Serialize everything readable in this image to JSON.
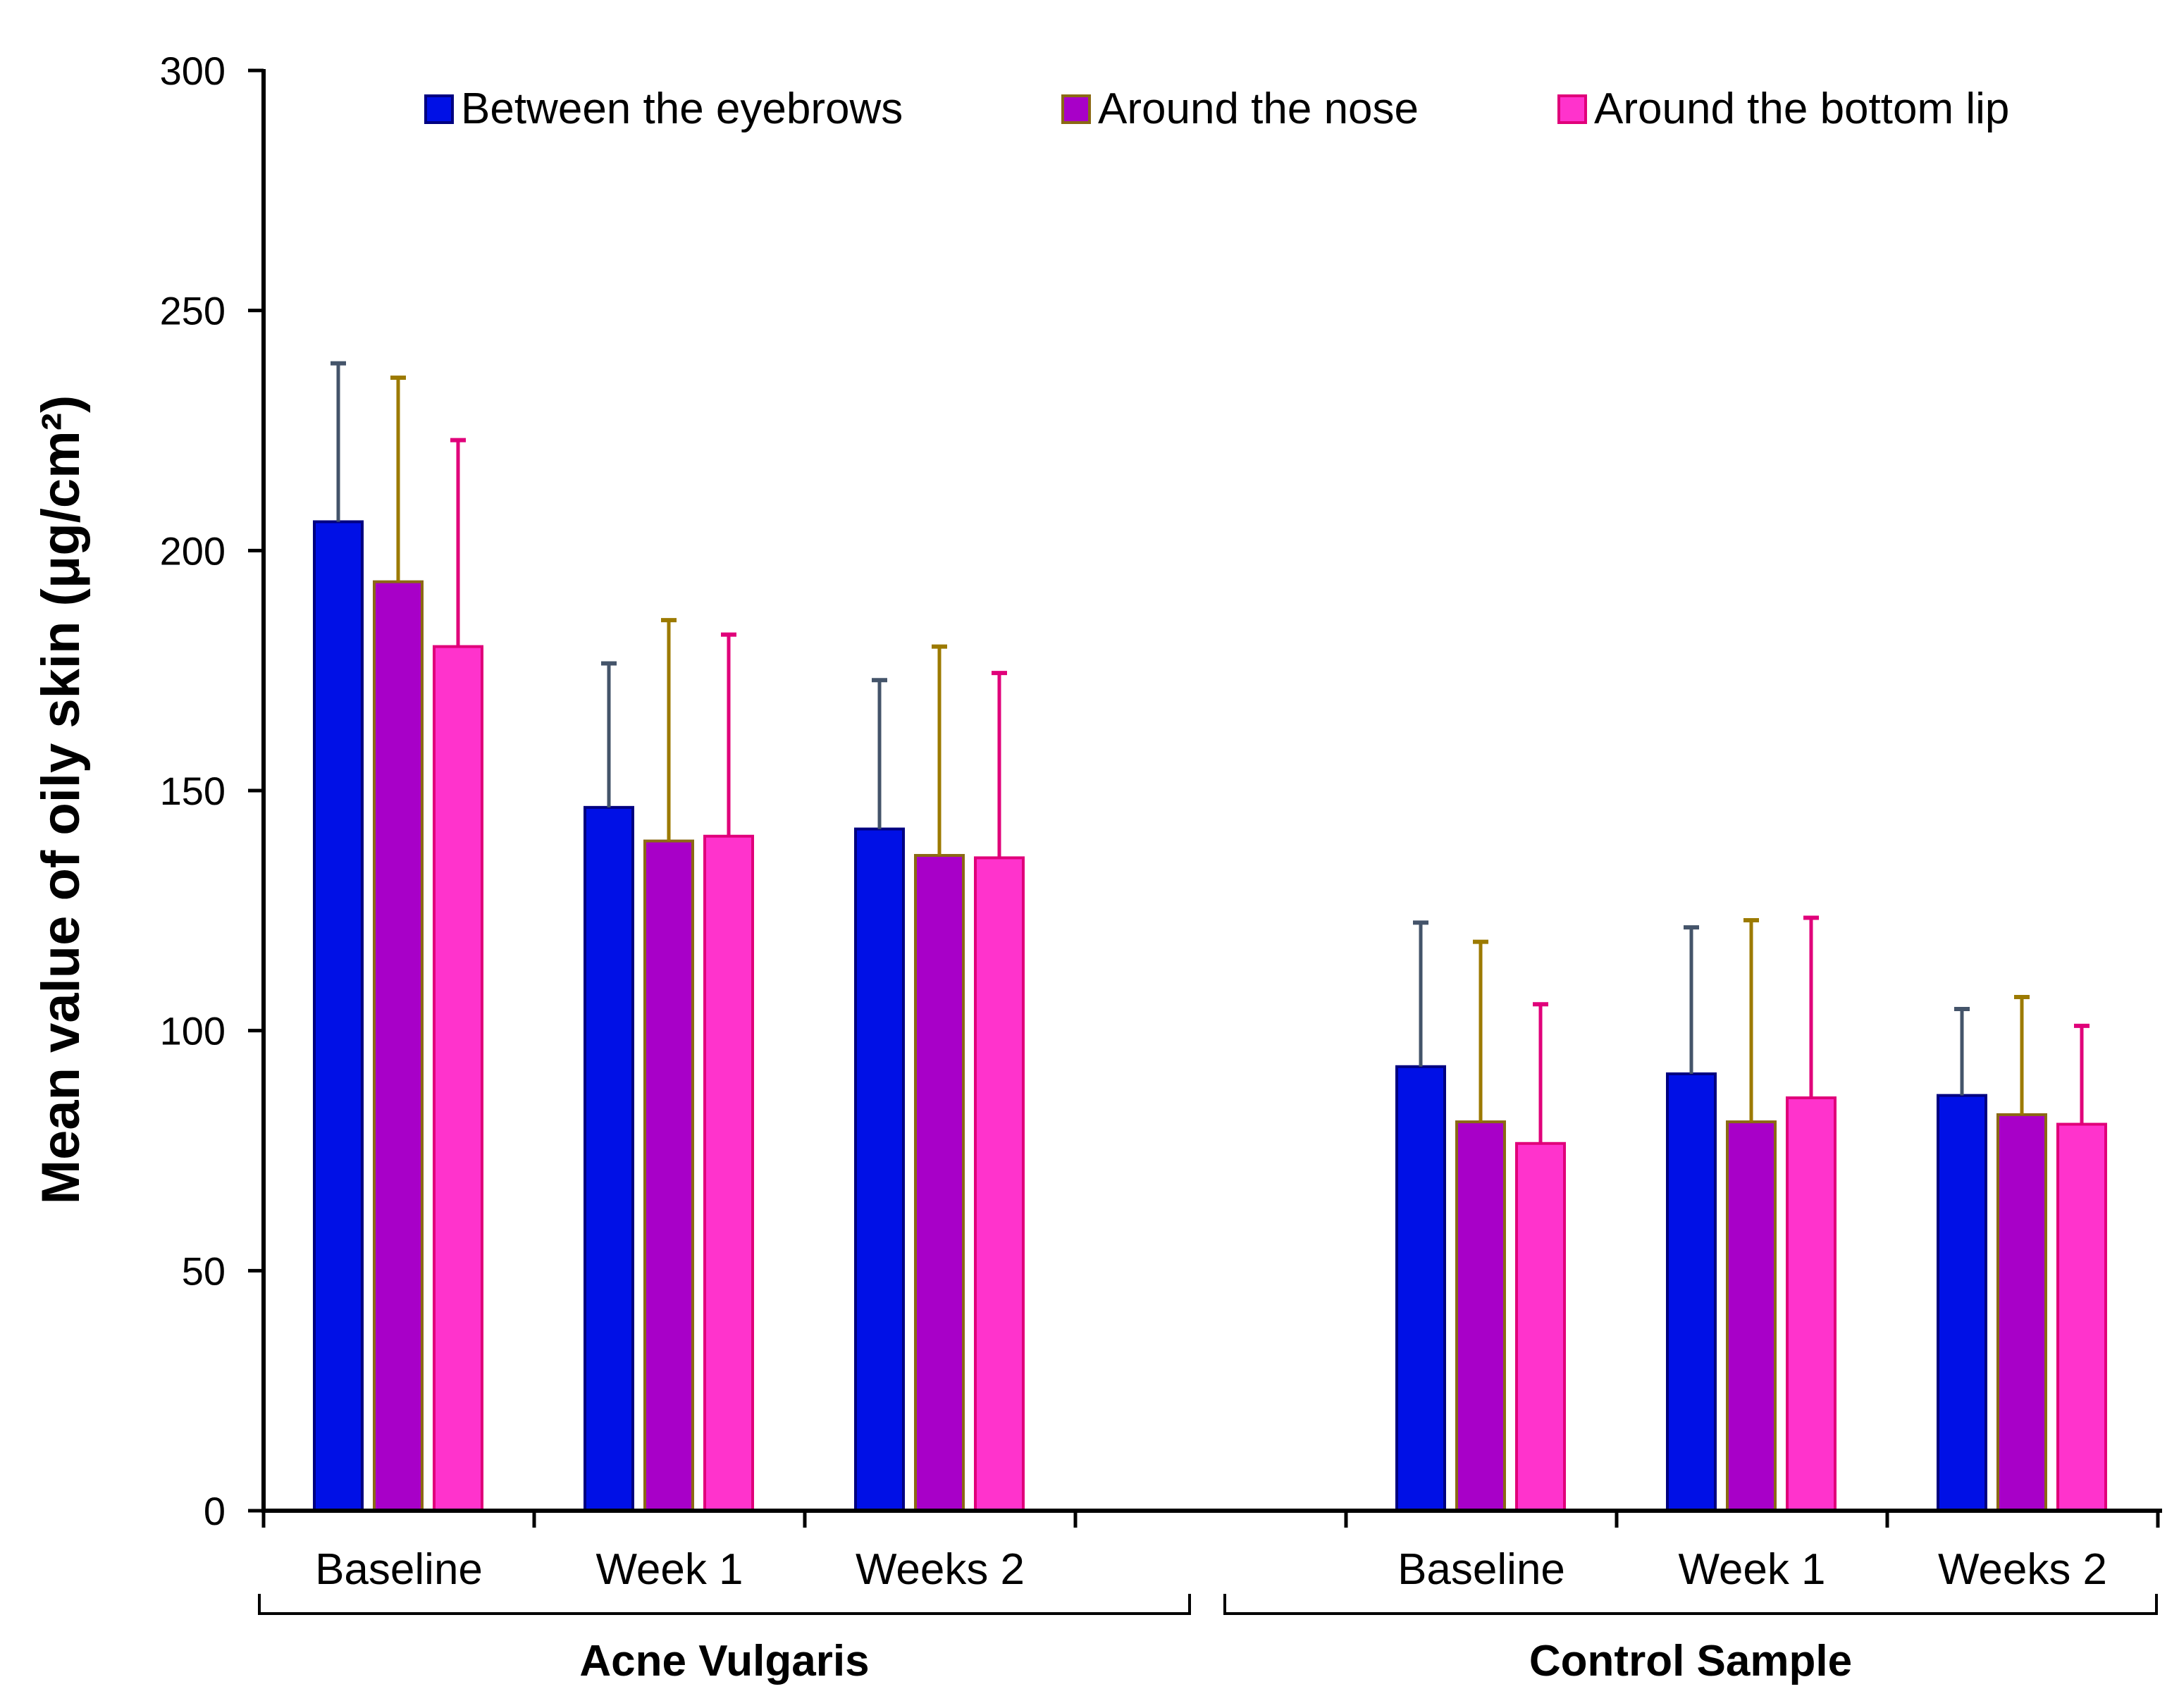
{
  "chart_data": {
    "type": "bar",
    "ylabel": "Mean value of oily skin (μg/cm²)",
    "ylim": [
      0,
      300
    ],
    "yticks": [
      0,
      50,
      100,
      150,
      200,
      250,
      300
    ],
    "groups": [
      {
        "label": "Acne Vulgaris",
        "categories": [
          "Baseline",
          "Week 1",
          "Weeks 2"
        ]
      },
      {
        "label": "Control Sample",
        "categories": [
          "Baseline",
          "Week 1",
          "Weeks 2"
        ]
      }
    ],
    "categories": [
      "Baseline",
      "Week 1",
      "Weeks 2",
      "",
      "Baseline",
      "Week 1",
      "Weeks 2"
    ],
    "legend_position": "top",
    "series": [
      {
        "name": "Between the eyebrows",
        "color": "#0010E6",
        "border": "#000080",
        "err_color": "#44546A",
        "values": [
          206,
          146.5,
          142,
          null,
          92.5,
          91,
          86.5
        ],
        "errors": [
          33,
          30,
          31,
          null,
          30,
          30.5,
          18
        ]
      },
      {
        "name": "Around the nose",
        "color": "#A800C8",
        "border": "#8B6914",
        "err_color": "#9C7A00",
        "values": [
          193.5,
          139.5,
          136.5,
          null,
          81,
          81,
          82.5
        ],
        "errors": [
          42.5,
          46,
          43.5,
          null,
          37.5,
          42,
          24.5
        ]
      },
      {
        "name": "Around the bottom lip",
        "color": "#FF33CC",
        "border": "#E0007A",
        "err_color": "#E0007A",
        "values": [
          180,
          140.5,
          136,
          null,
          76.5,
          86,
          80.5
        ],
        "errors": [
          43,
          42,
          38.5,
          null,
          29,
          37.5,
          20.5
        ]
      }
    ]
  }
}
